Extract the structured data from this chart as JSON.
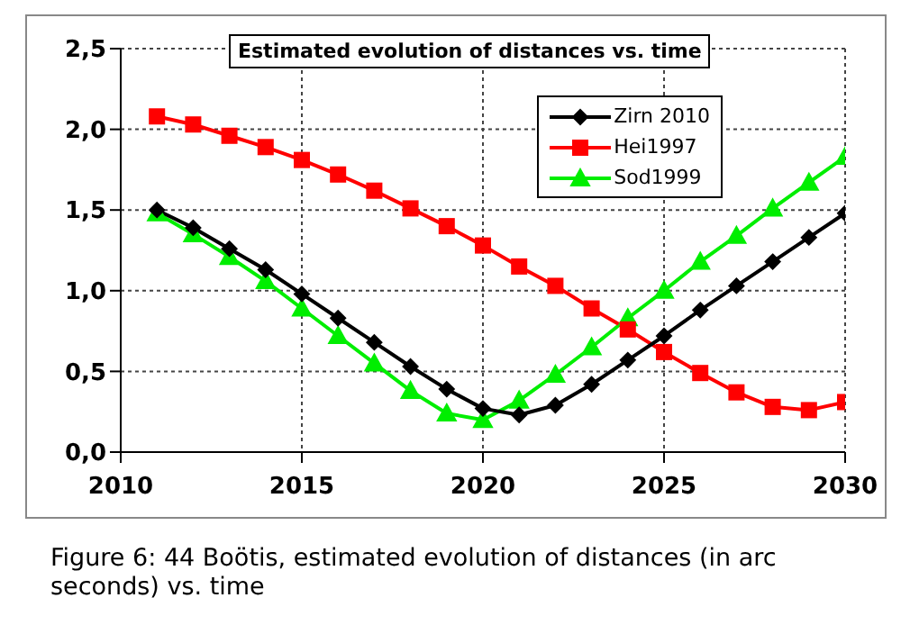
{
  "chart_data": {
    "type": "line",
    "title": "Estimated evolution of distances vs. time",
    "x": [
      2011,
      2012,
      2013,
      2014,
      2015,
      2016,
      2017,
      2018,
      2019,
      2020,
      2021,
      2022,
      2023,
      2024,
      2025,
      2026,
      2027,
      2028,
      2029,
      2030
    ],
    "series": [
      {
        "name": "Zirn 2010",
        "color": "#000000",
        "marker": "diamond",
        "values": [
          1.5,
          1.39,
          1.26,
          1.13,
          0.98,
          0.83,
          0.68,
          0.53,
          0.39,
          0.27,
          0.23,
          0.29,
          0.42,
          0.57,
          0.72,
          0.88,
          1.03,
          1.18,
          1.33,
          1.48
        ]
      },
      {
        "name": "Hei1997",
        "color": "#ff0000",
        "marker": "square",
        "values": [
          2.08,
          2.03,
          1.96,
          1.89,
          1.81,
          1.72,
          1.62,
          1.51,
          1.4,
          1.28,
          1.15,
          1.03,
          0.89,
          0.76,
          0.62,
          0.49,
          0.37,
          0.28,
          0.26,
          0.31
        ]
      },
      {
        "name": "Sod1999",
        "color": "#00ee00",
        "marker": "triangle",
        "values": [
          1.48,
          1.35,
          1.21,
          1.06,
          0.89,
          0.72,
          0.55,
          0.38,
          0.24,
          0.2,
          0.32,
          0.48,
          0.65,
          0.83,
          1.0,
          1.18,
          1.34,
          1.51,
          1.67,
          1.83
        ]
      }
    ],
    "xlim": [
      2010,
      2030
    ],
    "xticks": [
      2010,
      2015,
      2020,
      2025,
      2030
    ],
    "ylim": [
      0,
      2.5
    ],
    "yticks": [
      {
        "value": 0,
        "label": "0,0"
      },
      {
        "value": 0.5,
        "label": "0,5"
      },
      {
        "value": 1,
        "label": "1,0"
      },
      {
        "value": 1.5,
        "label": "1,5"
      },
      {
        "value": 2,
        "label": "2,0"
      },
      {
        "value": 2.5,
        "label": "2,5"
      }
    ],
    "grid": true,
    "legend": "top right",
    "line_style": "solid",
    "annotations": [
      "Figure 6: 44 Boötis, estimated evolution of distances (in arc seconds) vs. time"
    ]
  }
}
